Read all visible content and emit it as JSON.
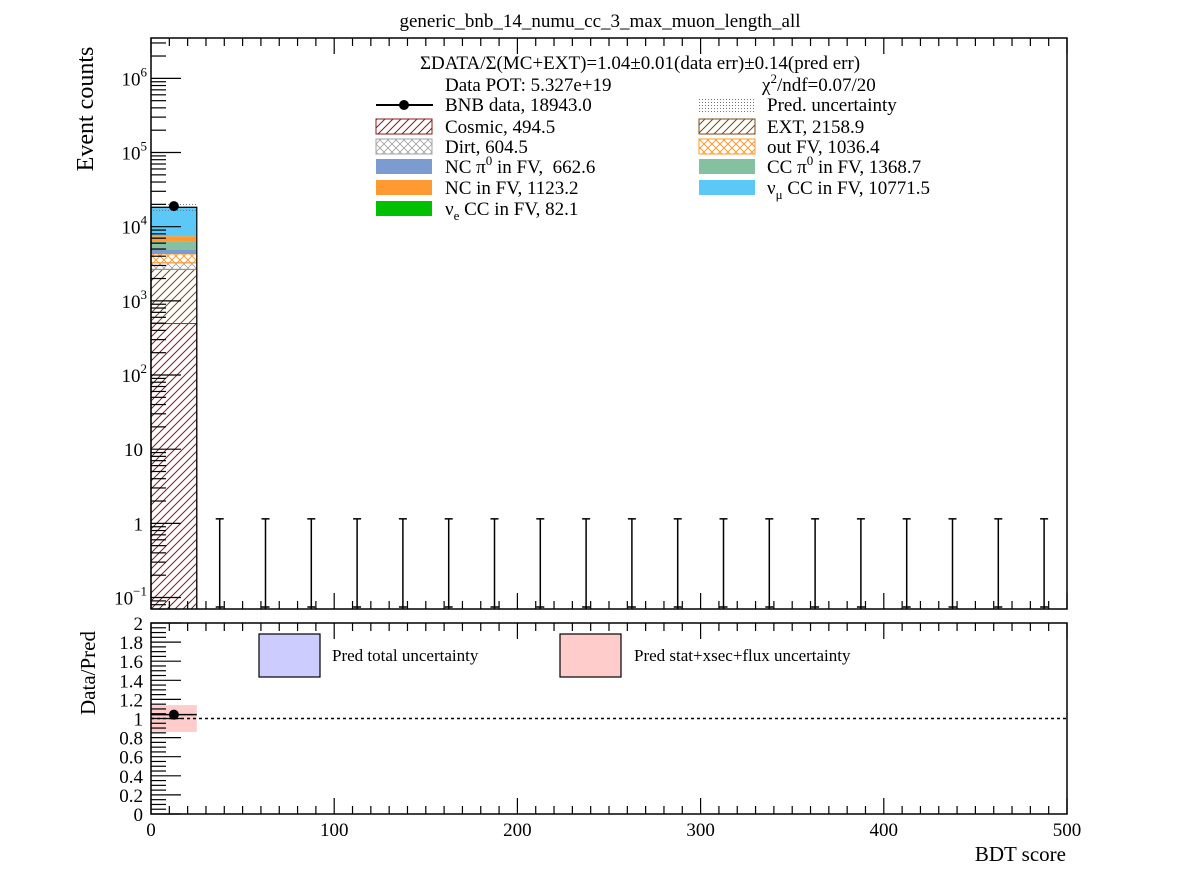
{
  "chart_data": [
    {
      "type": "stacked_histogram",
      "title": "generic_bnb_14_numu_cc_3_max_muon_length_all",
      "ylabel": "Event counts",
      "yscale": "log",
      "ylim": [
        0.07,
        3500000
      ],
      "xlim": [
        0,
        500
      ],
      "y_ticks": [
        {
          "value": 1000000,
          "base": "10",
          "exp": "6"
        },
        {
          "value": 100000,
          "base": "10",
          "exp": "5"
        },
        {
          "value": 10000,
          "base": "10",
          "exp": "4"
        },
        {
          "value": 1000,
          "base": "10",
          "exp": "3"
        },
        {
          "value": 100,
          "base": "10",
          "exp": "2"
        },
        {
          "value": 10,
          "base": "10",
          "exp": ""
        },
        {
          "value": 1,
          "base": "1",
          "exp": ""
        },
        {
          "value": 0.1,
          "base": "10",
          "exp": "−1"
        }
      ],
      "annotations": {
        "ratio": "ΣDATA/Σ(MC+EXT)=1.04±0.01(data err)±0.14(pred err)",
        "pot": "Data POT: 5.327e+19",
        "chi2_symbol": "χ",
        "chi2_sup": "2",
        "chi2_rest": "/ndf=0.07/20"
      },
      "bin_width": 25,
      "stack_bin0": [
        {
          "name": "Cosmic",
          "value": 494.5,
          "color": "#8b1a1a"
        },
        {
          "name": "EXT",
          "value": 2158.9,
          "color": "#7a4a1a"
        },
        {
          "name": "Dirt",
          "value": 604.5,
          "color": "#9a9a9a"
        },
        {
          "name": "out FV",
          "value": 1036.4,
          "color": "#ff9a2e"
        },
        {
          "name": "NC π0 in FV",
          "value": 662.6,
          "color": "#7b9bd1"
        },
        {
          "name": "CC π0 in FV",
          "value": 1368.7,
          "color": "#85c1a1"
        },
        {
          "name": "NC in FV",
          "value": 1123.2,
          "color": "#ff9a33"
        },
        {
          "name": "νμ CC in FV",
          "value": 10771.5,
          "color": "#5cc8f7"
        },
        {
          "name": "νe CC in FV",
          "value": 82.1,
          "color": "#00c000"
        }
      ],
      "data_points": [
        {
          "x": 12.5,
          "y": 18943.0
        }
      ],
      "empty_bins_x": [
        37.5,
        62.5,
        87.5,
        112.5,
        137.5,
        162.5,
        187.5,
        212.5,
        237.5,
        262.5,
        287.5,
        312.5,
        337.5,
        362.5,
        387.5,
        412.5,
        437.5,
        462.5,
        487.5
      ],
      "empty_bin_err_high": 1.15,
      "legend": [
        {
          "key": "bnb",
          "label": "BNB data, 18943.0",
          "style": "marker"
        },
        {
          "key": "pred",
          "label": "Pred. uncertainty",
          "style": "dots"
        },
        {
          "key": "cosmic",
          "label": "Cosmic, 494.5",
          "style": "hatch-red"
        },
        {
          "key": "ext",
          "label": "EXT, 2158.9",
          "style": "hatch-brown"
        },
        {
          "key": "dirt",
          "label": "Dirt, 604.5",
          "style": "cross-gray"
        },
        {
          "key": "outfv",
          "label": "out FV, 1036.4",
          "style": "cross-orange"
        },
        {
          "key": "ncpi0",
          "label_pre": "NC π",
          "label_sup": "0",
          "label_post": " in FV,  662.6",
          "color": "#7b9bd1"
        },
        {
          "key": "ccpi0",
          "label_pre": "CC π",
          "label_sup": "0",
          "label_post": " in FV, 1368.7",
          "color": "#85c1a1"
        },
        {
          "key": "ncfv",
          "label": "NC in FV, 1123.2",
          "color": "#ff9a33"
        },
        {
          "key": "numucc",
          "label_pre": "ν",
          "label_sub": "μ",
          "label_post": " CC in FV, 10771.5",
          "color": "#5cc8f7"
        },
        {
          "key": "necc",
          "label_pre": "ν",
          "label_sub": "e",
          "label_post": " CC in FV, 82.1",
          "color": "#00c000"
        }
      ]
    },
    {
      "type": "ratio",
      "ylabel": "Data/Pred",
      "xlabel": "BDT score",
      "xlim": [
        0,
        500
      ],
      "ylim": [
        0,
        2
      ],
      "y_ticks": [
        "2",
        "1.8",
        "1.6",
        "1.4",
        "1.2",
        "1",
        "0.8",
        "0.6",
        "0.4",
        "0.2",
        "0"
      ],
      "x_ticks": [
        "0",
        "100",
        "200",
        "300",
        "400",
        "500"
      ],
      "reference_line": 1.0,
      "points": [
        {
          "x": 12.5,
          "y": 1.04
        }
      ],
      "stat_band": [
        {
          "x0": 0,
          "x1": 25,
          "y0": 0.86,
          "y1": 1.14
        }
      ],
      "legend": [
        {
          "label": "Pred total uncertainty",
          "color": "#ccccff"
        },
        {
          "label": "Pred stat+xsec+flux uncertainty",
          "color": "#ffcccc"
        }
      ]
    }
  ]
}
